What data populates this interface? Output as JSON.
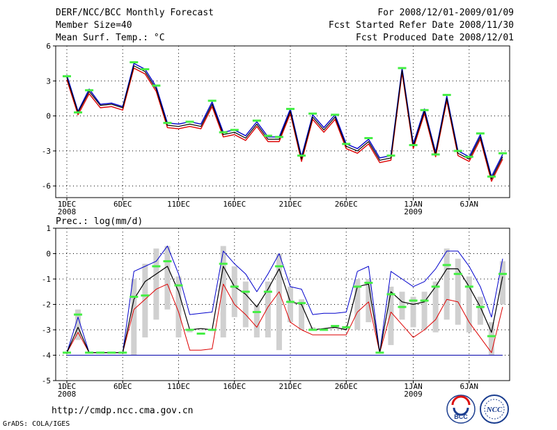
{
  "header": {
    "title": "DERF/NCC/BCC Monthly Forecast",
    "member_size": "Member Size=40",
    "variable": "Mean Surf. Temp.: °C",
    "period": "For 2008/12/01-2009/01/09",
    "refer_date": "Fcst Started Refer Date 2008/11/30",
    "produced_date": "Fcst Produced Date 2008/12/01"
  },
  "precip_label": "Prec.: log(mm/d)",
  "footer": {
    "url": "http://cmdp.ncc.cma.gov.cn",
    "credit": "GrADS: COLA/IGES",
    "logo_bcc": "BCC",
    "logo_ncc": "NCC"
  },
  "colors": {
    "ensemble_mean": "#000000",
    "upper_bound": "#0000cc",
    "lower_bound": "#dd0000",
    "member_marker": "#44ee44",
    "spread_bar": "#d0d0d0"
  },
  "chart_data": [
    {
      "type": "line",
      "title": "Mean Surf. Temp.: °C",
      "ylim": [
        -7,
        6
      ],
      "yticks": [
        -6,
        -3,
        0,
        3,
        6
      ],
      "x_tick_days": [
        1,
        6,
        11,
        16,
        21,
        26,
        32,
        37
      ],
      "x_tick_labels": [
        "1DEC",
        "6DEC",
        "11DEC",
        "16DEC",
        "21DEC",
        "26DEC",
        "1JAN",
        "6JAN"
      ],
      "x_year_labels": [
        {
          "day": 1,
          "text": "2008"
        },
        {
          "day": 32,
          "text": "2009"
        }
      ],
      "x": [
        1,
        2,
        3,
        4,
        5,
        6,
        7,
        8,
        9,
        10,
        11,
        12,
        13,
        14,
        15,
        16,
        17,
        18,
        19,
        20,
        21,
        22,
        23,
        24,
        25,
        26,
        27,
        28,
        29,
        30,
        31,
        32,
        33,
        34,
        35,
        36,
        37,
        38,
        39,
        40
      ],
      "series": [
        {
          "name": "ensemble mean",
          "values": [
            3.3,
            0.3,
            2.1,
            0.9,
            1.0,
            0.7,
            4.3,
            3.8,
            2.3,
            -0.8,
            -0.9,
            -0.7,
            -0.9,
            1.0,
            -1.6,
            -1.4,
            -1.9,
            -0.7,
            -2.0,
            -2.0,
            0.4,
            -3.7,
            -0.1,
            -1.2,
            -0.1,
            -2.6,
            -3.0,
            -2.2,
            -3.8,
            -3.6,
            3.9,
            -2.6,
            0.4,
            -3.3,
            1.5,
            -3.2,
            -3.7,
            -1.8,
            -5.4,
            -3.5
          ]
        },
        {
          "name": "upper bound",
          "values": [
            3.5,
            0.4,
            2.3,
            1.0,
            1.1,
            0.8,
            4.5,
            4.0,
            2.5,
            -0.6,
            -0.7,
            -0.5,
            -0.7,
            1.2,
            -1.4,
            -1.2,
            -1.7,
            -0.5,
            -1.8,
            -1.8,
            0.6,
            -3.5,
            0.1,
            -1.0,
            0.1,
            -2.4,
            -2.8,
            -2.0,
            -3.6,
            -3.4,
            4.1,
            -2.4,
            0.6,
            -3.1,
            1.7,
            -3.0,
            -3.5,
            -1.6,
            -5.2,
            -3.3
          ]
        },
        {
          "name": "lower bound",
          "values": [
            3.1,
            0.1,
            1.9,
            0.7,
            0.8,
            0.5,
            4.1,
            3.6,
            2.1,
            -1.0,
            -1.1,
            -0.9,
            -1.1,
            0.8,
            -1.8,
            -1.6,
            -2.1,
            -0.9,
            -2.2,
            -2.2,
            0.2,
            -3.9,
            -0.3,
            -1.4,
            -0.3,
            -2.8,
            -3.2,
            -2.4,
            -4.0,
            -3.8,
            3.7,
            -2.8,
            0.2,
            -3.5,
            1.3,
            -3.4,
            -3.9,
            -2.0,
            -5.6,
            -3.7
          ]
        },
        {
          "name": "member markers",
          "values": [
            3.4,
            0.3,
            2.2,
            null,
            null,
            null,
            4.6,
            4.0,
            2.6,
            -0.6,
            null,
            -0.5,
            null,
            1.3,
            -1.4,
            -1.2,
            null,
            -0.4,
            -1.7,
            -1.8,
            0.6,
            -3.4,
            0.2,
            null,
            0.1,
            -2.4,
            null,
            -1.9,
            null,
            -3.4,
            4.1,
            -2.5,
            0.5,
            -3.3,
            1.8,
            -3.0,
            -3.5,
            -1.5,
            -5.2,
            -3.2
          ]
        }
      ]
    },
    {
      "type": "line",
      "title": "Prec.: log(mm/d)",
      "ylim": [
        -5,
        1
      ],
      "yticks": [
        -5,
        -4,
        -3,
        -2,
        -1,
        0,
        1
      ],
      "x_tick_days": [
        1,
        6,
        11,
        16,
        21,
        26,
        32,
        37
      ],
      "x_tick_labels": [
        "1DEC",
        "6DEC",
        "11DEC",
        "16DEC",
        "21DEC",
        "26DEC",
        "1JAN",
        "6JAN"
      ],
      "x_year_labels": [
        {
          "day": 1,
          "text": "2008"
        },
        {
          "day": 32,
          "text": "2009"
        }
      ],
      "x": [
        1,
        2,
        3,
        4,
        5,
        6,
        7,
        8,
        9,
        10,
        11,
        12,
        13,
        14,
        15,
        16,
        17,
        18,
        19,
        20,
        21,
        22,
        23,
        24,
        25,
        26,
        27,
        28,
        29,
        30,
        31,
        32,
        33,
        34,
        35,
        36,
        37,
        38,
        39,
        40
      ],
      "series": [
        {
          "name": "ensemble mean",
          "values": [
            -3.9,
            -2.9,
            -3.9,
            -3.9,
            -3.9,
            -3.9,
            -1.8,
            -1.1,
            -0.8,
            -0.5,
            -1.5,
            -3.0,
            -2.95,
            -3.0,
            -0.5,
            -1.3,
            -1.6,
            -2.1,
            -1.4,
            -0.6,
            -1.9,
            -2.0,
            -3.0,
            -2.95,
            -2.9,
            -3.0,
            -1.3,
            -1.2,
            -3.9,
            -1.5,
            -1.9,
            -2.0,
            -1.9,
            -1.3,
            -0.6,
            -0.6,
            -1.3,
            -2.1,
            -3.1,
            -0.9
          ]
        },
        {
          "name": "upper bound",
          "values": [
            -3.9,
            -2.5,
            -3.9,
            -3.9,
            -3.9,
            -3.9,
            -0.7,
            -0.5,
            -0.3,
            0.3,
            -0.8,
            -2.4,
            -2.35,
            -2.3,
            0.1,
            -0.4,
            -0.8,
            -1.5,
            -0.8,
            0.0,
            -1.3,
            -1.4,
            -2.4,
            -2.35,
            -2.35,
            -2.3,
            -0.7,
            -0.5,
            -3.9,
            -0.7,
            -1.0,
            -1.3,
            -1.1,
            -0.6,
            0.1,
            0.1,
            -0.5,
            -1.3,
            -2.5,
            -0.2
          ]
        },
        {
          "name": "lower bound",
          "values": [
            -3.9,
            -3.1,
            -3.9,
            -3.9,
            -3.9,
            -3.9,
            -2.2,
            -1.8,
            -1.4,
            -1.2,
            -2.3,
            -3.8,
            -3.8,
            -3.75,
            -1.2,
            -2.0,
            -2.4,
            -2.9,
            -2.1,
            -1.5,
            -2.7,
            -3.0,
            -3.2,
            -3.2,
            -3.2,
            -3.2,
            -2.3,
            -1.9,
            -3.9,
            -2.3,
            -2.8,
            -3.3,
            -3.0,
            -2.6,
            -1.8,
            -1.9,
            -2.7,
            -3.3,
            -3.9,
            -2.1
          ]
        },
        {
          "name": "spread bar top",
          "values": [
            -3.9,
            -2.2,
            -3.9,
            -3.9,
            -3.9,
            -3.9,
            -1.0,
            -0.4,
            0.2,
            0.3,
            -0.9,
            -3.0,
            -3.0,
            -3.0,
            0.3,
            -0.5,
            -1.1,
            -2.0,
            -1.1,
            0.0,
            -1.3,
            -1.8,
            -2.9,
            -3.0,
            -2.9,
            -2.9,
            -1.0,
            -1.0,
            -3.9,
            -1.3,
            -1.5,
            -1.7,
            -1.5,
            -1.1,
            0.2,
            -0.2,
            -0.9,
            -1.7,
            -2.7,
            -0.3
          ]
        },
        {
          "name": "spread bar bottom",
          "values": [
            -3.9,
            -3.4,
            -3.9,
            -3.9,
            -3.9,
            -3.9,
            -4.0,
            -3.3,
            -2.6,
            -2.2,
            -3.3,
            -3.1,
            -3.0,
            -3.05,
            -3.3,
            -2.5,
            -2.9,
            -3.3,
            -3.3,
            -3.8,
            -2.7,
            -3.0,
            -3.0,
            -3.0,
            -2.95,
            -3.0,
            -3.0,
            -2.7,
            -3.9,
            -3.6,
            -2.6,
            -2.9,
            -3.0,
            -3.1,
            -2.6,
            -2.8,
            -3.1,
            -2.8,
            -4.0,
            -2.0
          ]
        },
        {
          "name": "member markers",
          "values": [
            -3.9,
            -2.4,
            -3.9,
            -3.9,
            -3.9,
            -3.9,
            -1.7,
            -1.65,
            -0.5,
            -0.3,
            -1.25,
            -3.0,
            -3.15,
            -3.0,
            -0.4,
            -1.3,
            -1.5,
            -2.3,
            -1.5,
            -0.5,
            -1.9,
            -1.95,
            -3.0,
            -3.0,
            -2.85,
            -2.9,
            -1.3,
            -1.15,
            -3.9,
            -1.6,
            -2.1,
            -1.85,
            -1.85,
            -1.3,
            -0.45,
            -0.8,
            -1.3,
            -2.1,
            -3.25,
            -0.8
          ]
        }
      ]
    }
  ]
}
